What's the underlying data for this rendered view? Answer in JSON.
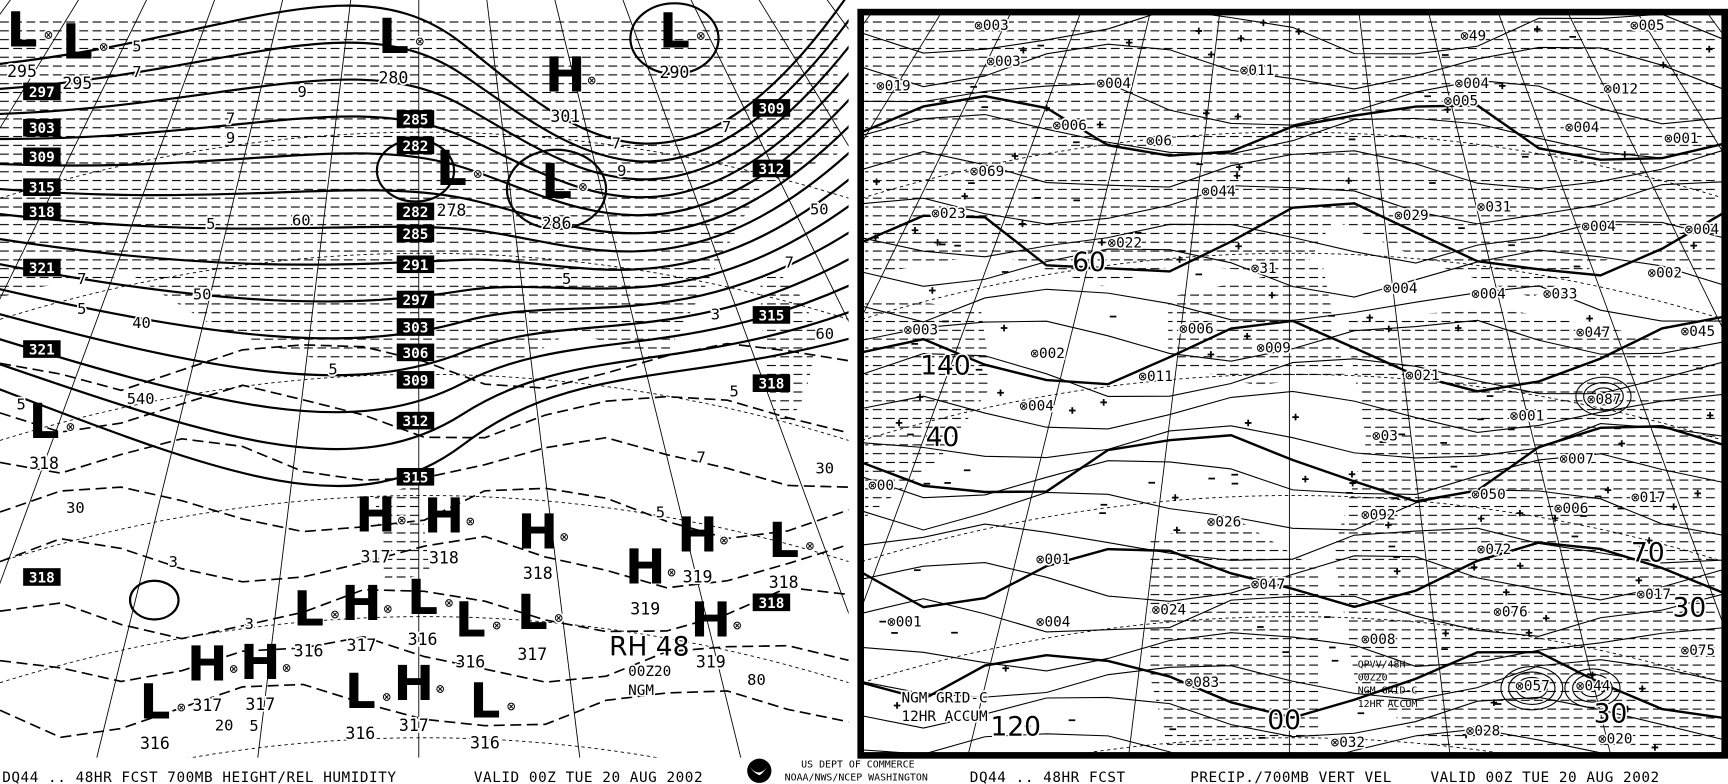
{
  "left_panel": {
    "caption": "DQ44 .. 48HR FCST 700MB HEIGHT/REL HUMIDITY",
    "valid": "VALID 00Z TUE 20 AUG 2002",
    "stamp": {
      "title": "RH 48",
      "time": "00Z20",
      "model": "NGM"
    },
    "height_boxes": [
      "297",
      "303",
      "309",
      "315",
      "318",
      "321",
      "321",
      "318",
      "285",
      "282",
      "282",
      "285",
      "291",
      "297",
      "303",
      "306",
      "309",
      "312",
      "315",
      "309",
      "312",
      "315",
      "318",
      "318"
    ],
    "centers": [
      {
        "type": "L",
        "value": "295"
      },
      {
        "type": "L",
        "value": "295"
      },
      {
        "type": "L",
        "value": "280"
      },
      {
        "type": "L",
        "value": "290"
      },
      {
        "type": "H",
        "value": "301"
      },
      {
        "type": "L",
        "value": "278"
      },
      {
        "type": "L",
        "value": "286"
      },
      {
        "type": "L",
        "value": "318"
      },
      {
        "type": "H",
        "value": "317"
      },
      {
        "type": "H",
        "value": "318"
      },
      {
        "type": "H",
        "value": "318"
      },
      {
        "type": "H",
        "value": "319"
      },
      {
        "type": "L",
        "value": "318"
      },
      {
        "type": "L",
        "value": "316"
      },
      {
        "type": "L",
        "value": "317"
      },
      {
        "type": "H",
        "value": "319"
      },
      {
        "type": "H",
        "value": "317"
      },
      {
        "type": "H",
        "value": "317"
      },
      {
        "type": "L",
        "value": "316"
      },
      {
        "type": "L",
        "value": "316"
      },
      {
        "type": "L",
        "value": "316"
      },
      {
        "type": "H",
        "value": "319"
      },
      {
        "type": "H",
        "value": "317"
      },
      {
        "type": "L",
        "value": "316"
      },
      {
        "type": "H",
        "value": "317"
      },
      {
        "type": "L",
        "value": "316"
      }
    ],
    "contour_labels": [
      "5",
      "7",
      "9",
      "7",
      "9",
      "5",
      "60",
      "50",
      "40",
      "540",
      "30",
      "7",
      "5",
      "5",
      "3",
      "20",
      "3",
      "5",
      "5",
      "7",
      "9",
      "50",
      "60",
      "80",
      "30",
      "7",
      "7",
      "5",
      "3",
      "5",
      "7",
      "5"
    ]
  },
  "agency": {
    "line1": "US DEPT OF COMMERCE",
    "line2": "NOAA/NWS/NCEP WASHINGTON",
    "logo": "noaa-logo"
  },
  "right_panel": {
    "caption": "DQ44 .. 48HR FCST",
    "title": "PRECIP./700MB VERT VEL",
    "valid": "VALID 00Z TUE 20 AUG 2002",
    "stamp_left": {
      "line1": "NGM GRID-C",
      "line2": "12HR ACCUM"
    },
    "stamp_right": {
      "line1": "QPVV/48H",
      "line2": "00Z20",
      "line3": "NGM GRID-C",
      "line4": "12HR ACCUM"
    },
    "precip_values": [
      "003",
      "019",
      "003",
      "004",
      "006",
      "06",
      "011",
      "49",
      "005",
      "004",
      "012",
      "005",
      "004",
      "001",
      "069",
      "044",
      "023",
      "022",
      "029",
      "031",
      "004",
      "004",
      "31",
      "004",
      "004",
      "033",
      "002",
      "003",
      "006",
      "009",
      "047",
      "045",
      "002",
      "021",
      "011",
      "004",
      "001",
      "087",
      "03",
      "007",
      "00",
      "026",
      "092",
      "050",
      "006",
      "017",
      "072",
      "001",
      "047",
      "017",
      "024",
      "076",
      "001",
      "004",
      "008",
      "075",
      "083",
      "057",
      "044",
      "032",
      "028",
      "020"
    ],
    "contour_labels": [
      "140",
      "40",
      "120",
      "70",
      "30",
      "00",
      "60",
      "30"
    ]
  }
}
